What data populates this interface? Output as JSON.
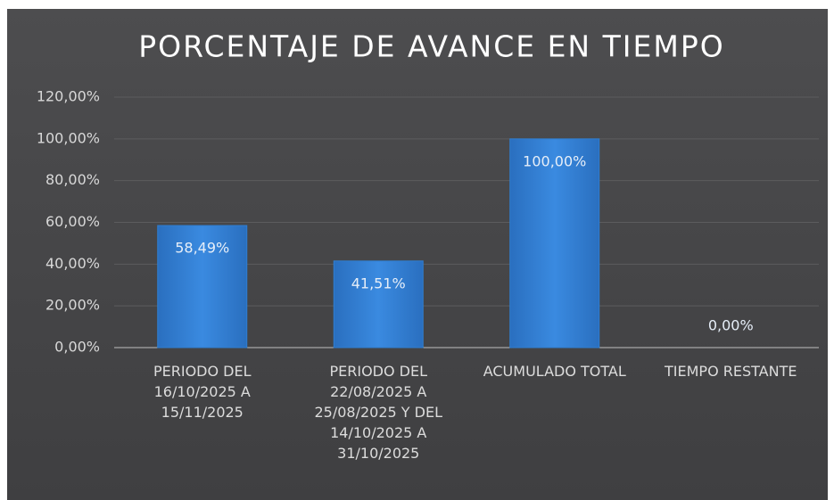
{
  "chart_data": {
    "type": "bar",
    "title": "PORCENTAJE DE AVANCE EN TIEMPO",
    "categories": [
      "PERIODO DEL\n16/10/2025 A\n15/11/2025",
      "PERIODO DEL\n22/08/2025 A\n25/08/2025 Y DEL\n14/10/2025 A\n31/10/2025",
      "ACUMULADO TOTAL",
      "TIEMPO RESTANTE"
    ],
    "values": [
      58.49,
      41.51,
      100,
      0
    ],
    "value_labels": [
      "58,49%",
      "41,51%",
      "100,00%",
      "0,00%"
    ],
    "color": "#2f7fd2",
    "ylim": [
      0,
      120
    ],
    "yticks": [
      {
        "value": 0,
        "label": "0,00%"
      },
      {
        "value": 20,
        "label": "20,00%"
      },
      {
        "value": 40,
        "label": "40,00%"
      },
      {
        "value": 60,
        "label": "60,00%"
      },
      {
        "value": 80,
        "label": "80,00%"
      },
      {
        "value": 100,
        "label": "100,00%"
      },
      {
        "value": 120,
        "label": "120,00%"
      }
    ],
    "grid": true
  }
}
